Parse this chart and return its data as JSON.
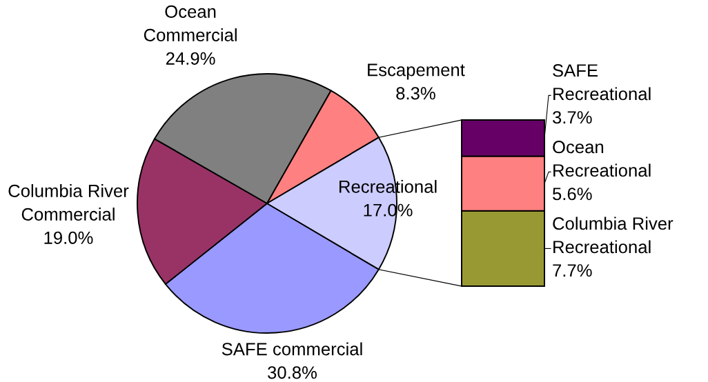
{
  "chart_data": [
    {
      "type": "pie",
      "categories": [
        "SAFE commercial",
        "Columbia River\nCommercial",
        "Ocean\nCommercial",
        "Escapement",
        "Recreational"
      ],
      "values": [
        30.8,
        19.0,
        24.9,
        8.3,
        17.0
      ],
      "colors": [
        "#9999ff",
        "#993366",
        "#808080",
        "#ff8080",
        "#ccccff"
      ],
      "value_labels": [
        "30.8%",
        "19.0%",
        "24.9%",
        "8.3%",
        "17.0%"
      ]
    },
    {
      "type": "bar",
      "stacked": true,
      "categories": [
        null
      ],
      "series": [
        {
          "name": "Columbia River\nRecreational",
          "color": "#999933",
          "values": [
            7.7
          ],
          "value_labels": [
            "7.7%"
          ]
        },
        {
          "name": "Ocean\nRecreational",
          "color": "#ff8080",
          "values": [
            5.6
          ],
          "value_labels": [
            "5.6%"
          ]
        },
        {
          "name": "SAFE\nRecreational",
          "color": "#660066",
          "values": [
            3.7
          ],
          "value_labels": [
            "3.7%"
          ]
        }
      ]
    }
  ]
}
